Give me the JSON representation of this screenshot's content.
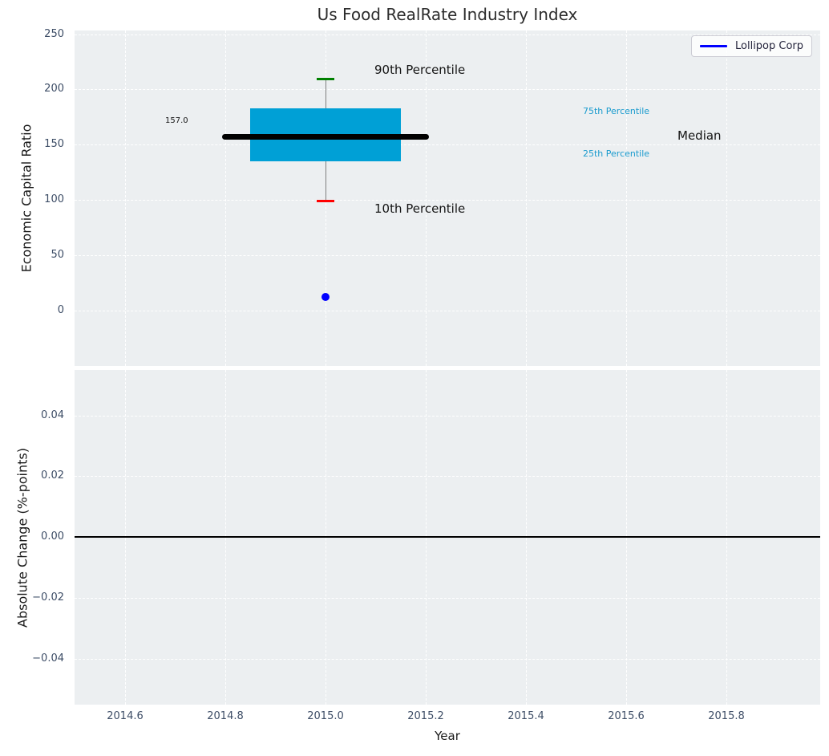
{
  "title": "Us Food RealRate Industry Index",
  "legend": {
    "label": "Lollipop Corp",
    "line_color": "#0000ff",
    "position": "upper right"
  },
  "ann": {
    "p90": "90th Percentile",
    "p10": "10th Percentile",
    "p75": "75th Percentile",
    "p25": "25th Percentile",
    "median": "Median",
    "median_value": "157.0"
  },
  "colors": {
    "plot_background": "#eceff1",
    "grid": "#ffffff",
    "tick_labels": "#3d4d66",
    "box_fill": "#00a0d6",
    "median_line": "#000000",
    "whisker": "#7f7f7f",
    "cap_p90": "#008000",
    "cap_p10": "#ff0000",
    "company_point": "#0000ff",
    "percentile_label_teal": "#1a9bce",
    "zero_line": "#000000"
  },
  "chart_data": [
    {
      "type": "box",
      "title": "Us Food RealRate Industry Index",
      "xlabel": "Year",
      "ylabel": "Economic Capital Ratio",
      "x": 2015.0,
      "percentiles": {
        "p10": 99,
        "p25": 135,
        "median": 157,
        "p75": 183,
        "p90": 209
      },
      "median_value_label": "157.0",
      "company_point": {
        "name": "Lollipop Corp",
        "x": 2015.0,
        "y": 12,
        "color": "#0000ff"
      },
      "box_width_years": 0.3,
      "median_line_width_years": 0.413,
      "annotations": [
        "90th Percentile",
        "10th Percentile",
        "75th Percentile",
        "25th Percentile",
        "Median"
      ],
      "xlim": [
        2014.5,
        2015.99
      ],
      "ylim": [
        -48,
        253
      ],
      "xticks": {
        "values": [
          2014.6,
          2014.8,
          2015.0,
          2015.2,
          2015.4,
          2015.6,
          2015.8
        ],
        "labels": [
          "2014.6",
          "2014.8",
          "2015.0",
          "2015.2",
          "2015.4",
          "2015.6",
          "2015.8"
        ]
      },
      "yticks": {
        "values": [
          0,
          50,
          100,
          150,
          200,
          250
        ],
        "labels": [
          "0",
          "50",
          "100",
          "150",
          "200",
          "250"
        ]
      },
      "grid": true,
      "legend_position": "upper right"
    },
    {
      "type": "line",
      "xlabel": "Year",
      "ylabel": "Absolute Change (%-points)",
      "zero_line_y": 0.0,
      "series": [],
      "xlim": [
        2014.5,
        2015.99
      ],
      "ylim": [
        -0.055,
        0.055
      ],
      "xticks": {
        "values": [
          2014.6,
          2014.8,
          2015.0,
          2015.2,
          2015.4,
          2015.6,
          2015.8
        ],
        "labels": [
          "2014.6",
          "2014.8",
          "2015.0",
          "2015.2",
          "2015.4",
          "2015.6",
          "2015.8"
        ]
      },
      "yticks": {
        "values": [
          0.04,
          0.02,
          0.0,
          -0.02,
          -0.04
        ],
        "labels": [
          "0.04",
          "0.02",
          "0.00",
          "−0.02",
          "−0.04"
        ]
      },
      "grid": true
    }
  ]
}
